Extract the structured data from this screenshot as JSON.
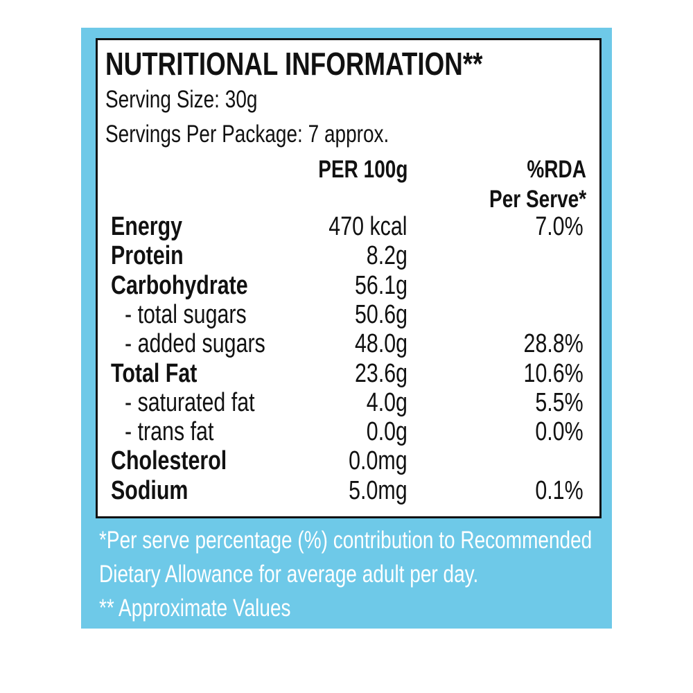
{
  "label": {
    "title": "NUTRITIONAL INFORMATION**",
    "serving_size": "Serving Size: 30g",
    "servings_per_package": "Servings Per Package: 7 approx.",
    "columns": {
      "per_100g": "PER 100g",
      "rda": [
        "%RDA",
        "Per Serve*"
      ]
    },
    "rows": [
      {
        "name": "Energy",
        "per_100g": "470 kcal",
        "rda": "7.0%"
      },
      {
        "name": "Protein",
        "per_100g": "8.2g"
      },
      {
        "name": "Carbohydrate",
        "per_100g": "56.1g",
        "sub": [
          {
            "name": "- total sugars",
            "per_100g": "50.6g"
          },
          {
            "name": "- added sugars",
            "per_100g": "48.0g",
            "rda": "28.8%"
          }
        ]
      },
      {
        "name": "Total Fat",
        "per_100g": "23.6g",
        "rda": "10.6%",
        "sub": [
          {
            "name": "- saturated fat",
            "per_100g": "4.0g",
            "rda": "5.5%"
          },
          {
            "name": "- trans fat",
            "per_100g": "0.0g",
            "rda": "0.0%"
          }
        ]
      },
      {
        "name": "Cholesterol",
        "per_100g": "0.0mg"
      },
      {
        "name": "Sodium",
        "per_100g": "5.0mg",
        "rda": "0.1%"
      }
    ],
    "footnotes": [
      "*Per serve percentage (%) contribution to Recommended",
      "Dietary Allowance for average adult per day.",
      "** Approximate Values"
    ]
  }
}
